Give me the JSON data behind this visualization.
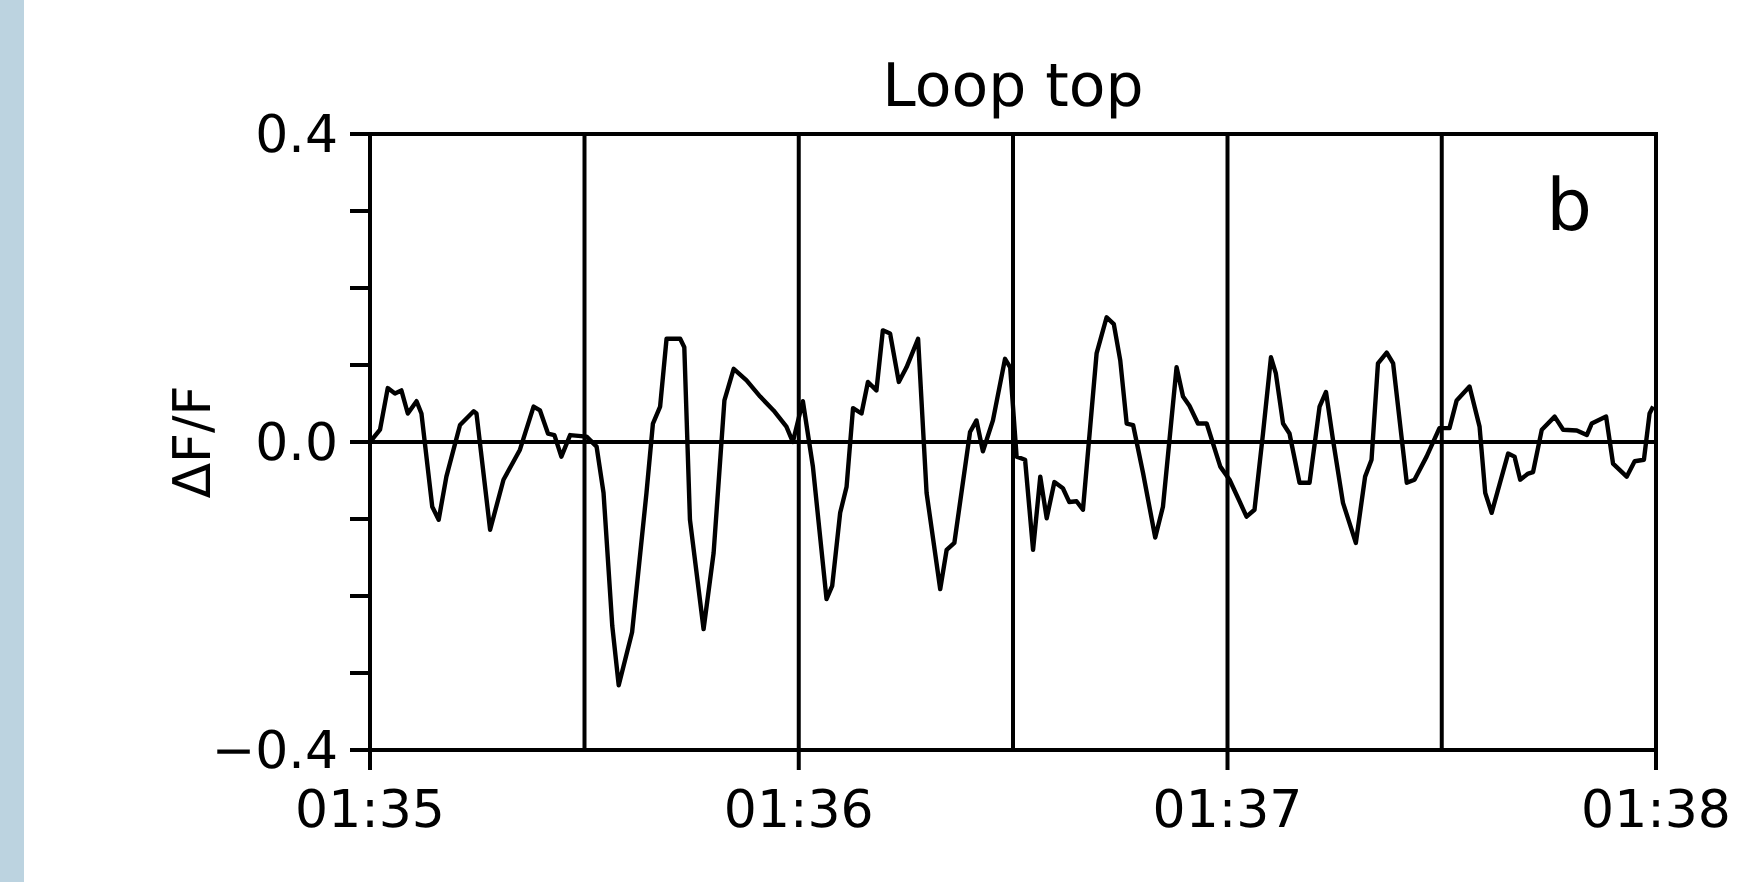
{
  "chart_data": {
    "type": "line",
    "title": "Loop top",
    "ylabel": "ΔF/F",
    "annotations": [
      "b"
    ],
    "xlim": [
      1.58333,
      1.63333
    ],
    "xticks": [
      {
        "value": 1.58333,
        "label": "01:35"
      },
      {
        "value": 1.6,
        "label": "01:36"
      },
      {
        "value": 1.61667,
        "label": "01:37"
      },
      {
        "value": 1.63333,
        "label": "01:38"
      }
    ],
    "ylim": [
      -0.4,
      0.4
    ],
    "yticks": [
      {
        "value": -0.4,
        "label": "−0.4"
      },
      {
        "value": -0.3,
        "label": null
      },
      {
        "value": -0.2,
        "label": null
      },
      {
        "value": -0.1,
        "label": null
      },
      {
        "value": 0,
        "label": "0.0"
      },
      {
        "value": 0.1,
        "label": null
      },
      {
        "value": 0.2,
        "label": null
      },
      {
        "value": 0.3,
        "label": null
      },
      {
        "value": 0.4,
        "label": "0.4"
      }
    ],
    "grid": false,
    "legend": false,
    "marker": "none",
    "line_style": "solid",
    "ref_lines": [
      {
        "axis": "y",
        "value": 0,
        "color": "#000000"
      },
      {
        "axis": "x",
        "value": 1.59167,
        "color": "#000000"
      },
      {
        "axis": "x",
        "value": 1.6,
        "color": "#000000"
      },
      {
        "axis": "x",
        "value": 1.60833,
        "color": "#000000"
      },
      {
        "axis": "x",
        "value": 1.61667,
        "color": "#000000"
      },
      {
        "axis": "x",
        "value": 1.625,
        "color": "#000000"
      }
    ],
    "x": [
      1.58333,
      1.58372,
      1.58402,
      1.5843,
      1.58455,
      1.5848,
      1.58514,
      1.58533,
      1.58575,
      1.586,
      1.5863,
      1.58683,
      1.58736,
      1.58747,
      1.588,
      1.58852,
      1.58916,
      1.58969,
      1.58994,
      1.59025,
      1.5905,
      1.59077,
      1.59111,
      1.59175,
      1.59214,
      1.59241,
      1.59275,
      1.593,
      1.59352,
      1.59408,
      1.59433,
      1.59461,
      1.59486,
      1.59539,
      1.59555,
      1.59577,
      1.5963,
      1.59669,
      1.59711,
      1.59747,
      1.59797,
      1.5985,
      1.59902,
      1.59952,
      1.59977,
      1.60016,
      1.60055,
      1.60108,
      1.6013,
      1.60161,
      1.60186,
      1.60211,
      1.60244,
      1.60269,
      1.60302,
      1.60327,
      1.60355,
      1.60389,
      1.60419,
      1.60464,
      1.60497,
      1.6055,
      1.60575,
      1.60605,
      1.60666,
      1.60691,
      1.60716,
      1.60755,
      1.60802,
      1.60822,
      1.60847,
      1.6088,
      1.60911,
      1.60939,
      1.60964,
      1.60994,
      1.61027,
      1.61052,
      1.6108,
      1.61105,
      1.61158,
      1.61197,
      1.61225,
      1.6125,
      1.61275,
      1.613,
      1.61339,
      1.61386,
      1.61416,
      1.61469,
      1.61494,
      1.61519,
      1.61552,
      1.61586,
      1.61639,
      1.61675,
      1.61711,
      1.61741,
      1.61772,
      1.61805,
      1.61836,
      1.61855,
      1.61883,
      1.61908,
      1.61947,
      1.61986,
      1.62025,
      1.6205,
      1.62077,
      1.62116,
      1.62166,
      1.62202,
      1.62227,
      1.62252,
      1.62286,
      1.62311,
      1.62364,
      1.62394,
      1.62441,
      1.62491,
      1.6253,
      1.62558,
      1.62608,
      1.62647,
      1.62669,
      1.62694,
      1.62758,
      1.62783,
      1.62805,
      1.62836,
      1.62855,
      1.62889,
      1.62939,
      1.62972,
      1.63025,
      1.63064,
      1.63083,
      1.63139,
      1.63166,
      1.63219,
      1.6325,
      1.63286,
      1.63308,
      1.63322
    ],
    "series": [
      {
        "color": "#000000",
        "values": [
          0,
          0.016,
          0.07,
          0.063,
          0.067,
          0.037,
          0.053,
          0.037,
          -0.084,
          -0.101,
          -0.045,
          0.022,
          0.04,
          0.037,
          -0.114,
          -0.049,
          -0.01,
          0.046,
          0.041,
          0.011,
          0.009,
          -0.019,
          0.009,
          0.007,
          -0.006,
          -0.066,
          -0.239,
          -0.316,
          -0.247,
          -0.066,
          0.024,
          0.046,
          0.134,
          0.134,
          0.123,
          -0.101,
          -0.243,
          -0.144,
          0.054,
          0.095,
          0.08,
          0.059,
          0.041,
          0.02,
          0,
          0.053,
          -0.032,
          -0.204,
          -0.187,
          -0.092,
          -0.058,
          0.044,
          0.037,
          0.078,
          0.067,
          0.145,
          0.141,
          0.078,
          0.097,
          0.134,
          -0.066,
          -0.191,
          -0.14,
          -0.131,
          0.013,
          0.028,
          -0.012,
          0.028,
          0.108,
          0.097,
          -0.019,
          -0.023,
          -0.14,
          -0.045,
          -0.099,
          -0.052,
          -0.06,
          -0.078,
          -0.077,
          -0.088,
          0.115,
          0.162,
          0.153,
          0.106,
          0.024,
          0.022,
          -0.041,
          -0.124,
          -0.084,
          0.097,
          0.059,
          0.047,
          0.024,
          0.024,
          -0.032,
          -0.049,
          -0.075,
          -0.097,
          -0.088,
          0.011,
          0.11,
          0.089,
          0.024,
          0.011,
          -0.053,
          -0.053,
          0.046,
          0.065,
          0.003,
          -0.079,
          -0.131,
          -0.045,
          -0.023,
          0.102,
          0.116,
          0.102,
          -0.053,
          -0.049,
          -0.019,
          0.018,
          0.018,
          0.054,
          0.072,
          0.02,
          -0.066,
          -0.092,
          -0.015,
          -0.019,
          -0.049,
          -0.041,
          -0.039,
          0.016,
          0.033,
          0.016,
          0.015,
          0.009,
          0.024,
          0.033,
          -0.028,
          -0.045,
          -0.025,
          -0.023,
          0.037,
          0.046
        ]
      }
    ]
  }
}
